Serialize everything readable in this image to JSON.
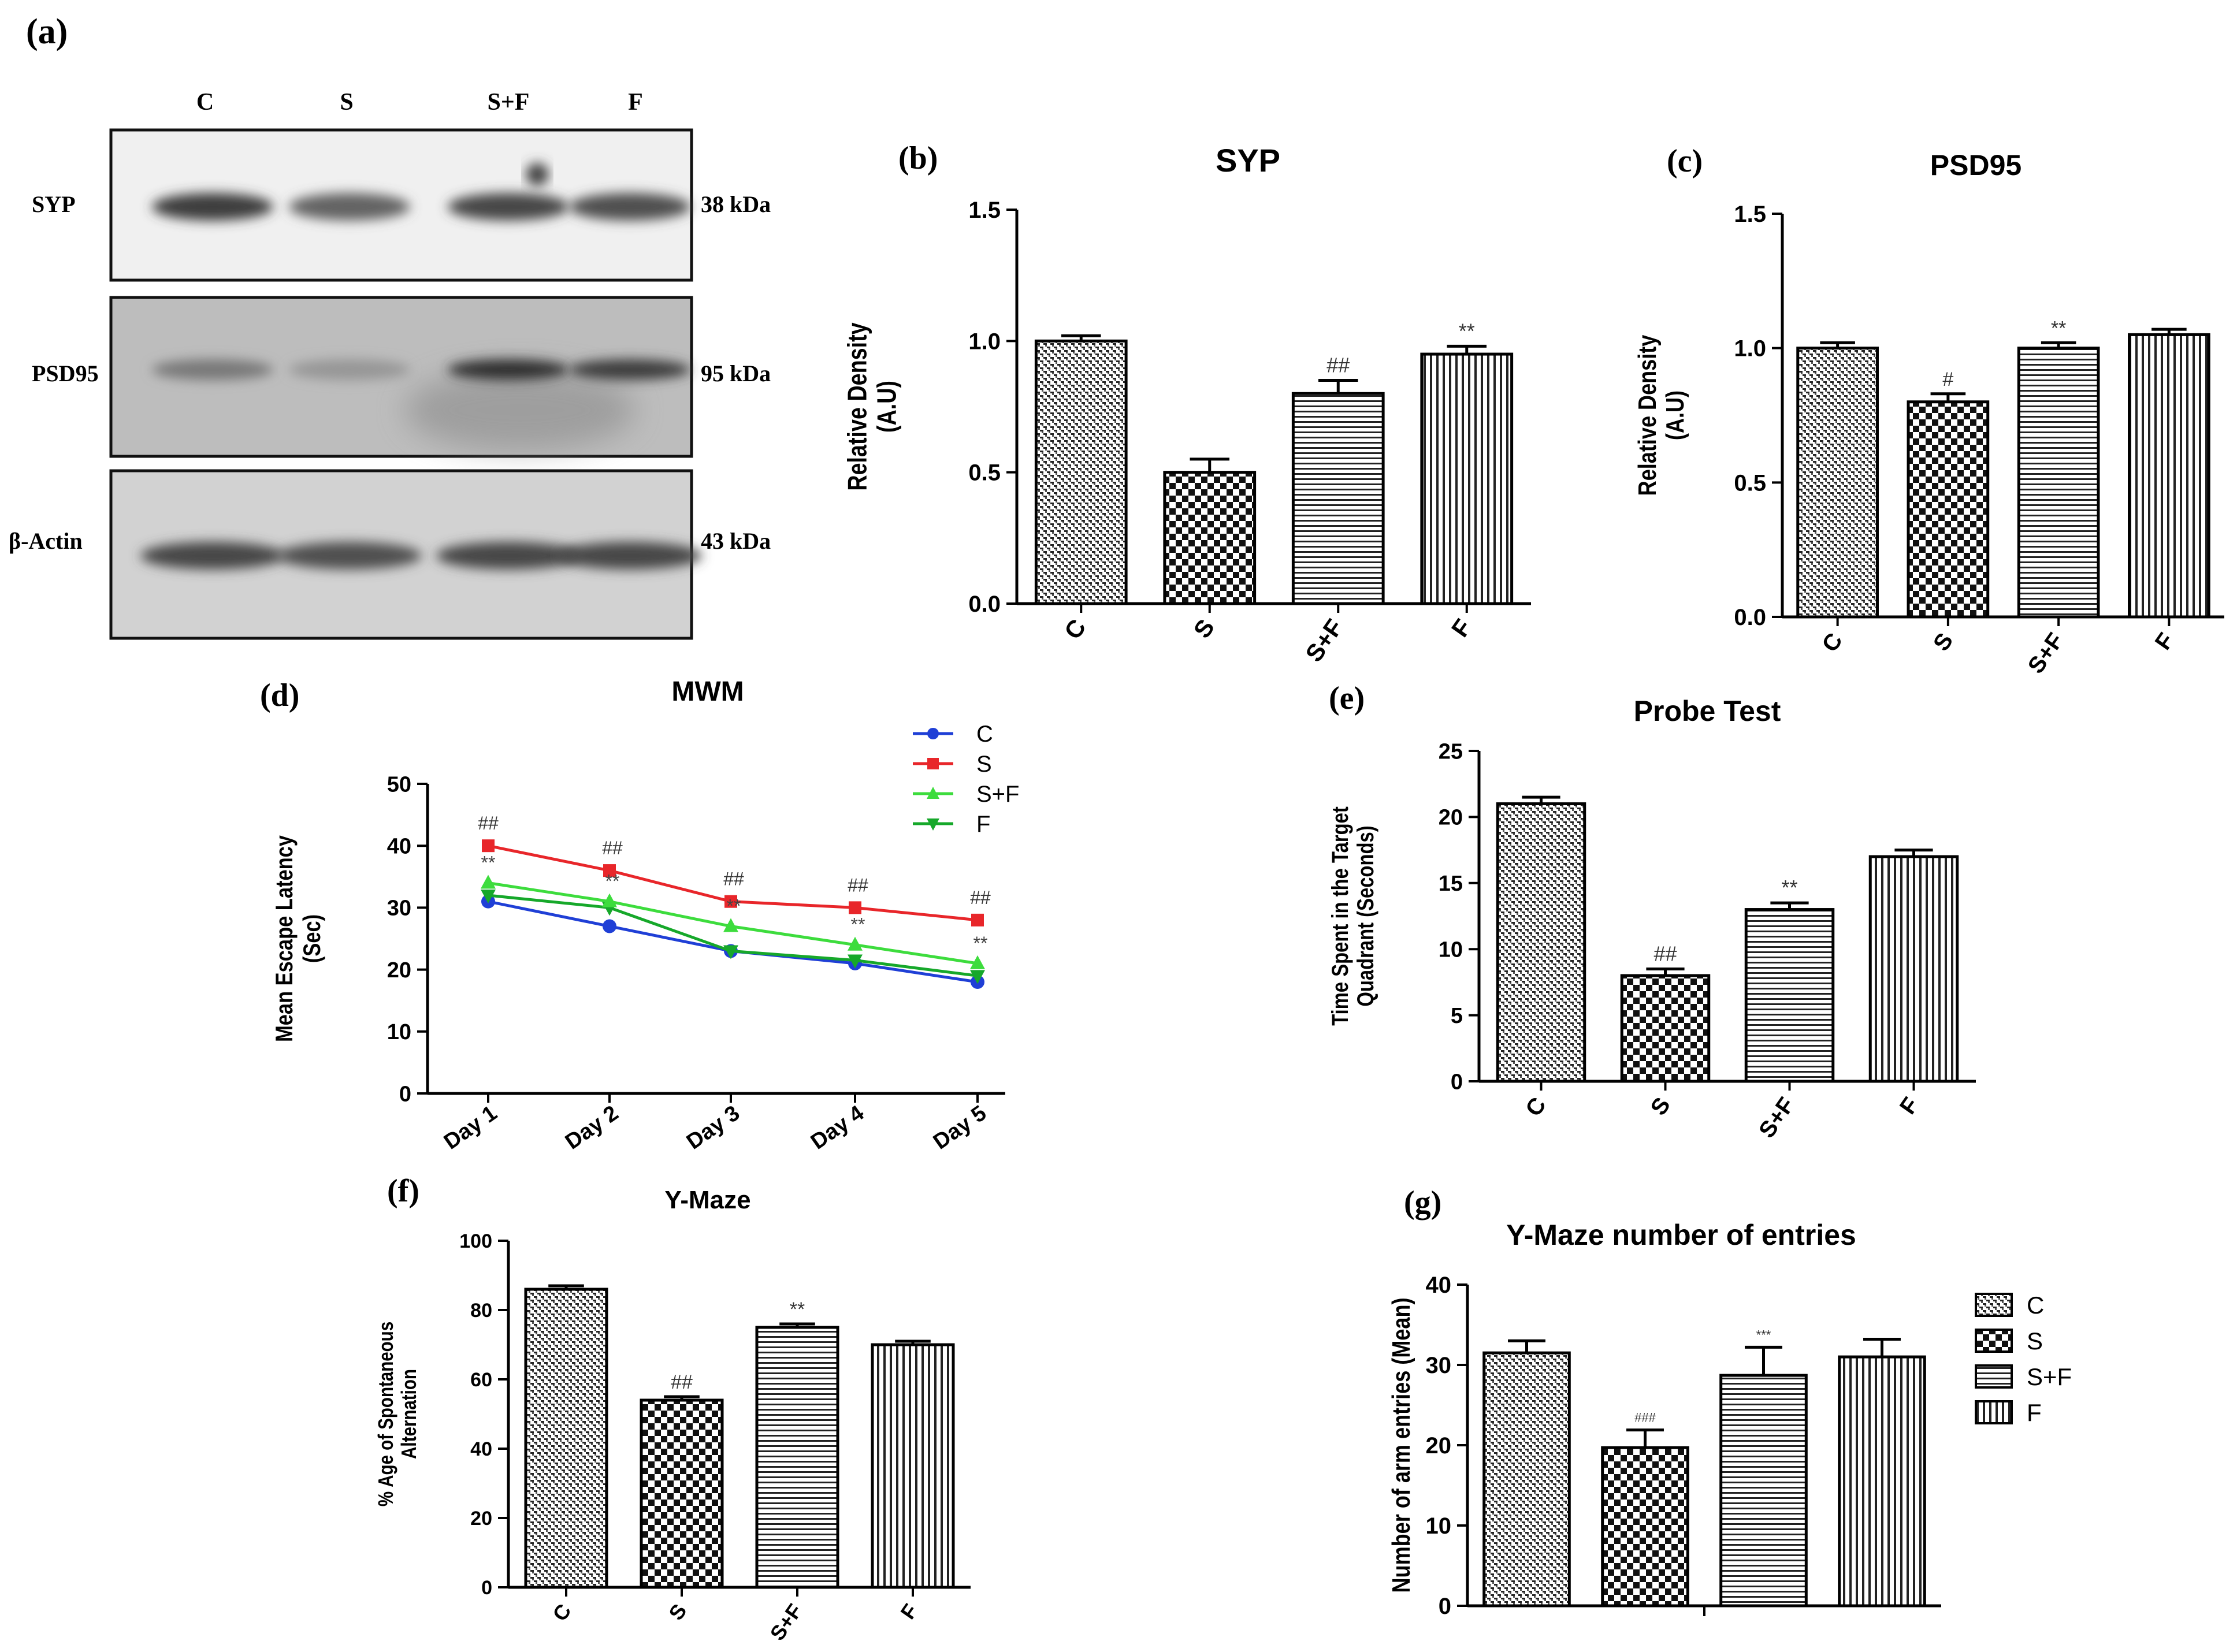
{
  "panels": {
    "a": {
      "label": "(a)",
      "lanes": [
        "C",
        "S",
        "S+F",
        "F"
      ],
      "blots": [
        {
          "name": "SYP",
          "kda": "38 kDa",
          "band_intensity": [
            0.85,
            0.65,
            0.8,
            0.75
          ],
          "background": "#f0f0f0"
        },
        {
          "name": "PSD95",
          "kda": "95 kDa",
          "band_intensity": [
            0.55,
            0.4,
            0.9,
            0.85
          ],
          "background": "#bdbdbd"
        },
        {
          "name": "β-Actin",
          "kda": "43 kDa",
          "band_intensity": [
            0.8,
            0.75,
            0.8,
            0.8
          ],
          "background": "#d2d2d2"
        }
      ]
    },
    "b": {
      "label": "(b)"
    },
    "c": {
      "label": "(c)"
    },
    "d": {
      "label": "(d)"
    },
    "e": {
      "label": "(e)"
    },
    "f": {
      "label": "(f)"
    },
    "g": {
      "label": "(g)"
    }
  },
  "colors": {
    "C": "#1f3fd6",
    "S": "#e8262a",
    "S+F": "#3ddc3d",
    "F": "#16a82a"
  },
  "chart_data": [
    {
      "id": "b",
      "type": "bar",
      "title": "SYP",
      "ylabel": [
        "Relative Density",
        "(A.U)"
      ],
      "categories": [
        "C",
        "S",
        "S+F",
        "F"
      ],
      "values": [
        1.0,
        0.5,
        0.8,
        0.95
      ],
      "errors": [
        0.02,
        0.05,
        0.05,
        0.03
      ],
      "annotations": [
        "",
        "",
        "##",
        "**"
      ],
      "patterns": [
        "weave",
        "checker",
        "hlines",
        "vlines"
      ],
      "ylim": [
        0,
        1.5
      ],
      "yticks": [
        "0.0",
        "0.5",
        "1.0",
        "1.5"
      ]
    },
    {
      "id": "c",
      "type": "bar",
      "title": "PSD95",
      "ylabel": [
        "Relative Density",
        "(A.U)"
      ],
      "categories": [
        "C",
        "S",
        "S+F",
        "F"
      ],
      "values": [
        1.0,
        0.8,
        1.0,
        1.05
      ],
      "errors": [
        0.02,
        0.03,
        0.02,
        0.02
      ],
      "annotations": [
        "",
        "#",
        "**",
        ""
      ],
      "patterns": [
        "weave",
        "checker",
        "hlines",
        "vlines"
      ],
      "ylim": [
        0,
        1.5
      ],
      "yticks": [
        "0.0",
        "0.5",
        "1.0",
        "1.5"
      ]
    },
    {
      "id": "d",
      "type": "line",
      "title": "MWM",
      "ylabel": [
        "Mean Escape Latency",
        "(Sec)"
      ],
      "x": [
        "Day 1",
        "Day 2",
        "Day 3",
        "Day 4",
        "Day 5"
      ],
      "ylim": [
        0,
        50
      ],
      "yticks": [
        "0",
        "10",
        "20",
        "30",
        "40",
        "50"
      ],
      "legend_position": "top-right",
      "series": [
        {
          "name": "C",
          "values": [
            31,
            27,
            23,
            21,
            18
          ],
          "marker": "circle"
        },
        {
          "name": "S",
          "values": [
            40,
            36,
            31,
            30,
            28
          ],
          "marker": "square"
        },
        {
          "name": "S+F",
          "values": [
            34,
            31,
            27,
            24,
            21
          ],
          "marker": "triangle-up"
        },
        {
          "name": "F",
          "values": [
            32,
            30,
            23,
            21.5,
            19
          ],
          "marker": "triangle-down"
        }
      ],
      "annotations_top": [
        "##",
        "##",
        "##",
        "##",
        "##"
      ],
      "annotations_mid": [
        "**",
        "**",
        "**",
        "**",
        "**"
      ]
    },
    {
      "id": "e",
      "type": "bar",
      "title": "Probe Test",
      "ylabel": [
        "Time Spent in the Target",
        "Quadrant (Seconds)"
      ],
      "categories": [
        "C",
        "S",
        "S+F",
        "F"
      ],
      "values": [
        21,
        8,
        13,
        17
      ],
      "errors": [
        0.5,
        0.5,
        0.5,
        0.5
      ],
      "annotations": [
        "",
        "##",
        "**",
        ""
      ],
      "patterns": [
        "weave",
        "checker",
        "hlines",
        "vlines"
      ],
      "ylim": [
        0,
        25
      ],
      "yticks": [
        "0",
        "5",
        "10",
        "15",
        "20",
        "25"
      ]
    },
    {
      "id": "f",
      "type": "bar",
      "title": "Y-Maze",
      "ylabel": [
        "% Age of Spontaneous",
        "Alternation"
      ],
      "categories": [
        "C",
        "S",
        "S+F",
        "F"
      ],
      "values": [
        86,
        54,
        75,
        70
      ],
      "errors": [
        1,
        1,
        1,
        1
      ],
      "annotations": [
        "",
        "##",
        "**",
        ""
      ],
      "patterns": [
        "weave",
        "checker",
        "hlines",
        "vlines"
      ],
      "ylim": [
        0,
        100
      ],
      "yticks": [
        "0",
        "20",
        "40",
        "60",
        "80",
        "100"
      ]
    },
    {
      "id": "g",
      "type": "bar",
      "title": "Y-Maze number of entries",
      "ylabel": [
        "Number of arm entries (Mean)"
      ],
      "categories": [
        "C",
        "S",
        "S+F",
        "F"
      ],
      "values": [
        31.5,
        19.7,
        28.7,
        31
      ],
      "errors": [
        1.5,
        2.2,
        3.5,
        2.2
      ],
      "annotations": [
        "",
        "###",
        "***",
        ""
      ],
      "patterns": [
        "weave",
        "checker",
        "hlines",
        "vlines"
      ],
      "ylim": [
        0,
        40
      ],
      "yticks": [
        "0",
        "10",
        "20",
        "30",
        "40"
      ],
      "legend_position": "right"
    }
  ]
}
